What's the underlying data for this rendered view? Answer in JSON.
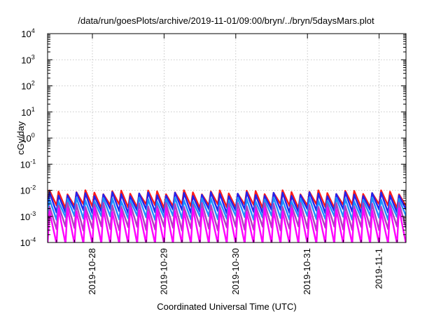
{
  "chart_data": {
    "type": "line",
    "title": "/data/run/goesPlots/archive/2019-11-01/09:00/bryn/../bryn/5daysMars.plot",
    "xlabel": "Coordinated Universal Time (UTC)",
    "ylabel": "cGy/day",
    "y_scale": "log",
    "ylim": [
      0.0001,
      10000
    ],
    "y_ticks": [
      {
        "value": 10000,
        "base": "10",
        "exp": "4"
      },
      {
        "value": 1000,
        "base": "10",
        "exp": "3"
      },
      {
        "value": 100,
        "base": "10",
        "exp": "2"
      },
      {
        "value": 10,
        "base": "10",
        "exp": "1"
      },
      {
        "value": 1,
        "base": "10",
        "exp": "0"
      },
      {
        "value": 0.1,
        "base": "10",
        "exp": "-1"
      },
      {
        "value": 0.01,
        "base": "10",
        "exp": "-2"
      },
      {
        "value": 0.001,
        "base": "10",
        "exp": "-3"
      },
      {
        "value": 0.0001,
        "base": "10",
        "exp": "-4"
      }
    ],
    "xlim": [
      "2019-10-27T09:00",
      "2019-11-01T09:00"
    ],
    "x_ticks": [
      {
        "value": "2019-10-28T00:00",
        "label": "2019-10-28"
      },
      {
        "value": "2019-10-29T00:00",
        "label": "2019-10-29"
      },
      {
        "value": "2019-10-30T00:00",
        "label": "2019-10-30"
      },
      {
        "value": "2019-10-31T00:00",
        "label": "2019-10-31"
      },
      {
        "value": "2019-11-01T00:00",
        "label": "2019-11-1"
      }
    ],
    "grid": true,
    "legend": "none",
    "series": [
      {
        "color": "#ff1a1a",
        "pattern": "sawtooth",
        "period_hours": 3,
        "peak": 0.0085,
        "trough": 0.0025
      },
      {
        "color": "#2222ee",
        "pattern": "sawtooth",
        "period_hours": 3,
        "peak": 0.0072,
        "trough": 0.0016
      },
      {
        "color": "#1e90ff",
        "pattern": "sawtooth",
        "period_hours": 3,
        "peak": 0.0045,
        "trough": 0.0009
      },
      {
        "color": "#b040c0",
        "pattern": "sawtooth",
        "period_hours": 3,
        "peak": 0.0028,
        "trough": 0.00035
      },
      {
        "color": "#ff00ff",
        "pattern": "sawtooth",
        "period_hours": 3,
        "peak": 0.0018,
        "trough": 9e-05
      }
    ]
  }
}
